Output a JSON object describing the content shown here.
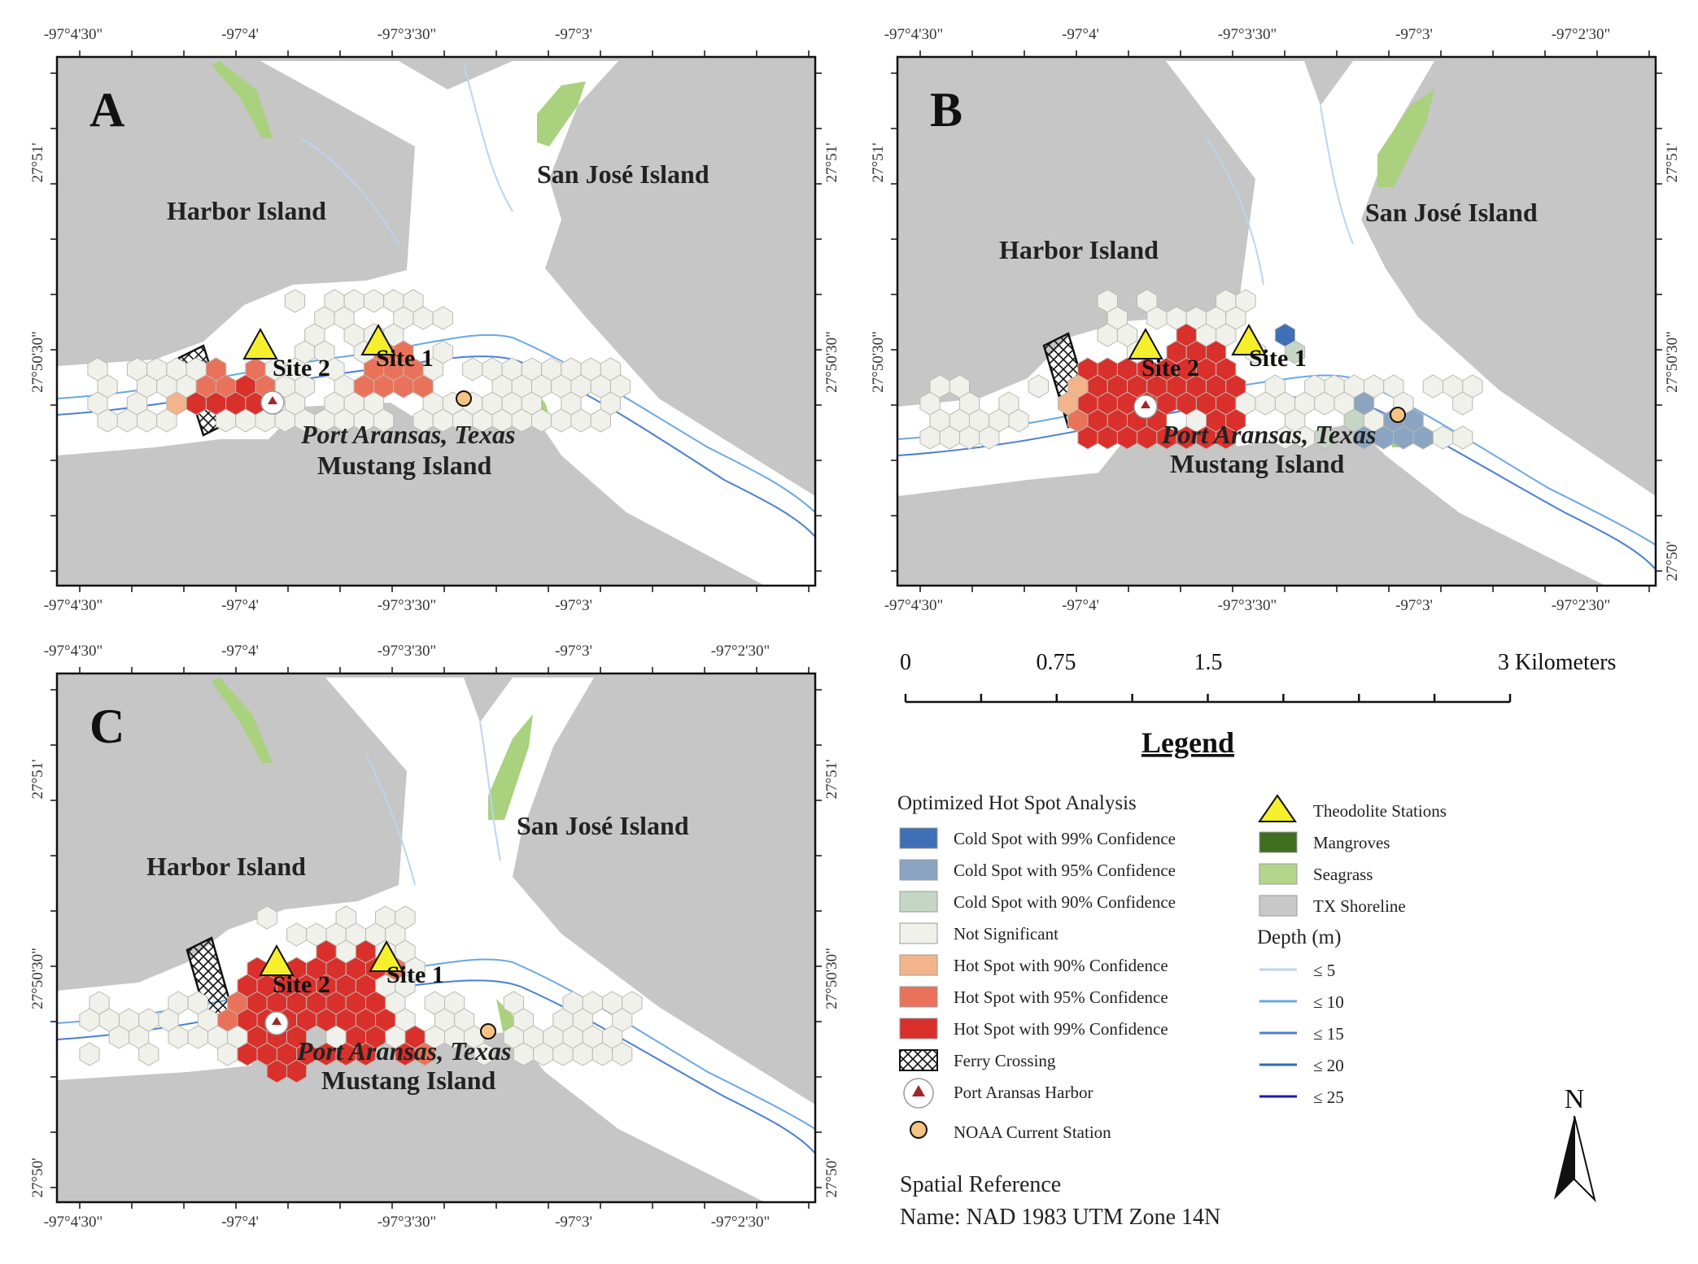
{
  "panels": [
    {
      "letter": "A",
      "top_ticks": [
        "-97°4'30\"",
        "-97°4'",
        "-97°3'30\"",
        "-97°3'"
      ],
      "bottom_ticks": [
        "-97°4'30\"",
        "-97°4'",
        "-97°3'30\"",
        "-97°3'"
      ],
      "left_ticks": [
        "27°51'",
        "27°50'30\""
      ],
      "right_ticks": [
        "27°51'",
        "27°50'30\""
      ],
      "labels": {
        "island_1": "Harbor Island",
        "island_2": "San José Island",
        "town": "Port Aransas, Texas",
        "island_3": "Mustang Island",
        "site_1": "Site 1",
        "site_2": "Site 2"
      }
    },
    {
      "letter": "B",
      "top_ticks": [
        "-97°4'30\"",
        "-97°4'",
        "-97°3'30\"",
        "-97°3'",
        "-97°2'30\""
      ],
      "bottom_ticks": [
        "-97°4'30\"",
        "-97°4'",
        "-97°3'30\"",
        "-97°3'",
        "-97°2'30\""
      ],
      "left_ticks": [
        "27°51'",
        "27°50'30\""
      ],
      "right_ticks": [
        "27°51'",
        "27°50'30\"",
        "27°50'"
      ],
      "labels": {
        "island_1": "Harbor Island",
        "island_2": "San José Island",
        "town": "Port Aransas, Texas",
        "island_3": "Mustang Island",
        "site_1": "Site 1",
        "site_2": "Site 2"
      }
    },
    {
      "letter": "C",
      "top_ticks": [
        "-97°4'30\"",
        "-97°4'",
        "-97°3'30\"",
        "-97°3'",
        "-97°2'30\""
      ],
      "bottom_ticks": [
        "-97°4'30\"",
        "-97°4'",
        "-97°3'30\"",
        "-97°3'",
        "-97°2'30\""
      ],
      "left_ticks": [
        "27°51'",
        "27°50'30\"",
        "27°50'"
      ],
      "right_ticks": [
        "27°51'",
        "27°50'30\"",
        "27°50'"
      ],
      "labels": {
        "island_1": "Harbor Island",
        "island_2": "San José Island",
        "town": "Port Aransas, Texas",
        "island_3": "Mustang Island",
        "site_1": "Site 1",
        "site_2": "Site 2"
      }
    }
  ],
  "scale_bar": {
    "labels": [
      "0",
      "0.75",
      "1.5",
      "3 Kilometers"
    ]
  },
  "legend": {
    "title": "Legend",
    "hotspot_title": "Optimized Hot Spot Analysis",
    "hotspot_items": [
      {
        "label": "Cold Spot with 99% Confidence",
        "color": "#3f6fb5"
      },
      {
        "label": "Cold Spot with 95% Confidence",
        "color": "#8aa4c1"
      },
      {
        "label": "Cold Spot with 90% Confidence",
        "color": "#c6d6c4"
      },
      {
        "label": "Not Significant",
        "color": "#f1f1ec"
      },
      {
        "label": "Hot Spot with 90% Confidence",
        "color": "#f3b48b"
      },
      {
        "label": "Hot Spot with 95% Confidence",
        "color": "#e9735a"
      },
      {
        "label": "Hot Spot with 99% Confidence",
        "color": "#d9302c"
      }
    ],
    "symbol_items": [
      {
        "label": "Ferry Crossing",
        "icon": "hatched-rectangle"
      },
      {
        "label": "Port Aransas Harbor",
        "icon": "harbor-icon"
      },
      {
        "label": "NOAA Current Station",
        "icon": "orange-circle"
      }
    ],
    "feature_items": [
      {
        "label": "Theodolite Stations",
        "icon": "yellow-triangle",
        "color": "#f6ef2c"
      },
      {
        "label": "Mangroves",
        "color": "#3f6e1f"
      },
      {
        "label": "Seagrass",
        "color": "#b4d68b"
      },
      {
        "label": "TX Shoreline",
        "color": "#c8c8c8"
      }
    ],
    "depth_title": "Depth (m)",
    "depth_items": [
      {
        "label": "≤ 5",
        "color": "#bcd4f0"
      },
      {
        "label": "≤ 10",
        "color": "#6aa7e2"
      },
      {
        "label": "≤ 15",
        "color": "#4a7fd3"
      },
      {
        "label": "≤ 20",
        "color": "#2e6db0"
      },
      {
        "label": "≤ 25",
        "color": "#1a1aa8"
      }
    ]
  },
  "north_arrow": {
    "label": "N"
  },
  "spatial_reference": {
    "title": "Spatial Reference",
    "name": "Name: NAD 1983 UTM Zone 14N"
  },
  "colors": {
    "land": "#c6c6c6",
    "water": "#ffffff",
    "seagrass": "#a9d17e",
    "theodolite": "#f6ef2c",
    "noaa": "#f6c383"
  }
}
